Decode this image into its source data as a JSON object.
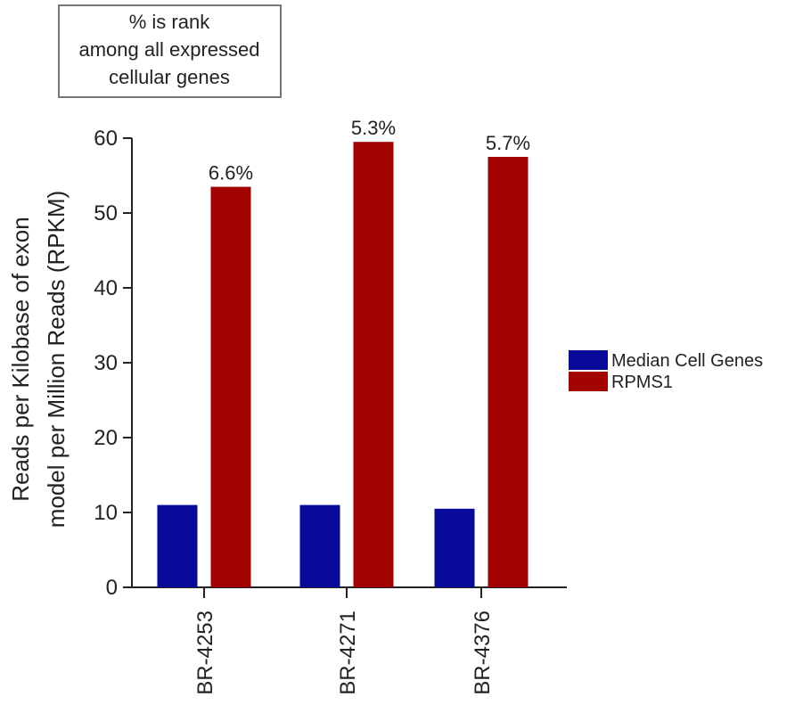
{
  "chart_data": {
    "type": "bar",
    "annotation_box": {
      "lines": [
        "% is rank",
        "among all expressed",
        "cellular genes"
      ]
    },
    "ylabel_lines": [
      "Reads per Kilobase of exon",
      "model per Million Reads (RPKM)"
    ],
    "ylim": [
      0,
      60
    ],
    "yticks": [
      0,
      10,
      20,
      30,
      40,
      50,
      60
    ],
    "categories": [
      "BR-4253",
      "BR-4271",
      "BR-4376"
    ],
    "series": [
      {
        "name": "Median Cell Genes",
        "color": "#0a0a9a",
        "values": [
          11,
          11,
          10.5
        ],
        "data_labels": [
          "",
          "",
          ""
        ]
      },
      {
        "name": "RPMS1",
        "color": "#a30000",
        "values": [
          53.5,
          59.5,
          57.5
        ],
        "data_labels": [
          "6.6%",
          "5.3%",
          "5.7%"
        ]
      }
    ],
    "legend_position": "right",
    "grid": false
  }
}
